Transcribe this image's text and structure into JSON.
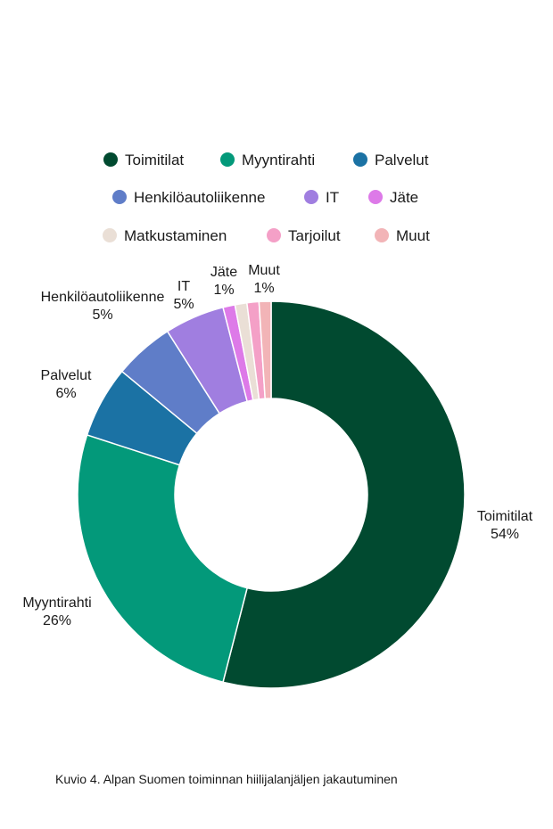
{
  "caption": "Kuvio 4. Alpan Suomen toiminnan hiilijalanjäljen jakautuminen",
  "chart_data": {
    "type": "pie",
    "donut": true,
    "legend_position": "top",
    "slices": [
      {
        "name": "Toimitilat",
        "value": 54,
        "label": "54%",
        "color": "#014a30"
      },
      {
        "name": "Myyntirahti",
        "value": 26,
        "label": "26%",
        "color": "#03997a"
      },
      {
        "name": "Palvelut",
        "value": 6,
        "label": "6%",
        "color": "#1b72a4"
      },
      {
        "name": "Henkilöautoliikenne",
        "value": 5,
        "label": "5%",
        "color": "#5f7dc8"
      },
      {
        "name": "IT",
        "value": 5,
        "label": "5%",
        "color": "#a07ee0"
      },
      {
        "name": "Jäte",
        "value": 1,
        "label": "1%",
        "color": "#dd7ae8"
      },
      {
        "name": "Matkustaminen",
        "value": 1,
        "label": "",
        "color": "#eadfd6"
      },
      {
        "name": "Tarjoilut",
        "value": 1,
        "label": "",
        "color": "#f4a0c7"
      },
      {
        "name": "Muut",
        "value": 1,
        "label": "1%",
        "color": "#f2b4b7"
      }
    ]
  }
}
